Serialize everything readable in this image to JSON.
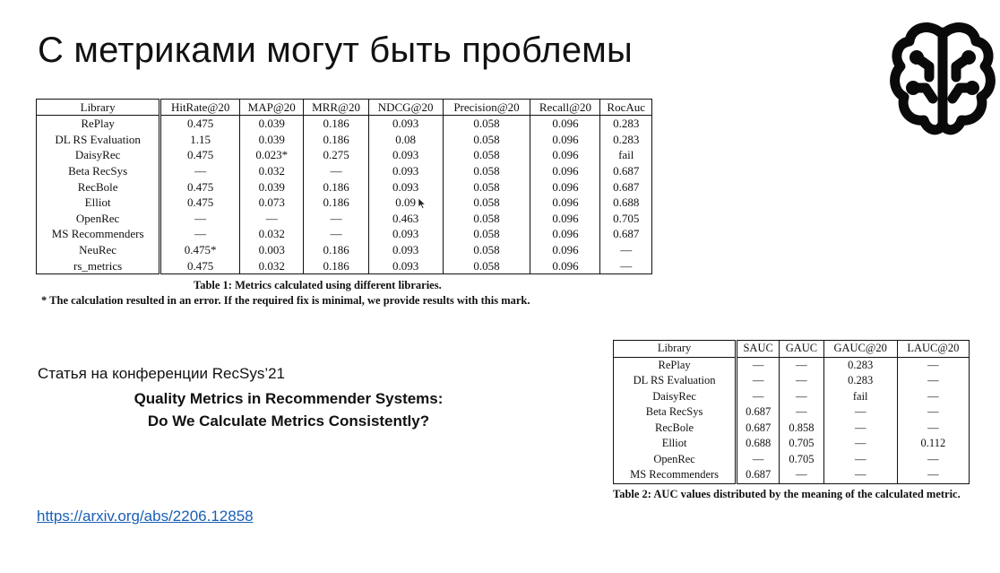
{
  "slide": {
    "title": "С метриками могут быть проблемы",
    "conference_line": "Статья на конференции RecSys’21",
    "paper_title_line1": "Quality Metrics in Recommender Systems:",
    "paper_title_line2": "Do We Calculate Metrics Consistently?",
    "link_text": "https://arxiv.org/abs/2206.12858",
    "logo_icon": "brain-circuit-icon"
  },
  "table1": {
    "headers": [
      "Library",
      "HitRate@20",
      "MAP@20",
      "MRR@20",
      "NDCG@20",
      "Precision@20",
      "Recall@20",
      "RocAuc"
    ],
    "rows": [
      [
        "RePlay",
        "0.475",
        "0.039",
        "0.186",
        "0.093",
        "0.058",
        "0.096",
        "0.283"
      ],
      [
        "DL RS Evaluation",
        "1.15",
        "0.039",
        "0.186",
        "0.08",
        "0.058",
        "0.096",
        "0.283"
      ],
      [
        "DaisyRec",
        "0.475",
        "0.023*",
        "0.275",
        "0.093",
        "0.058",
        "0.096",
        "fail"
      ],
      [
        "Beta RecSys",
        "—",
        "0.032",
        "—",
        "0.093",
        "0.058",
        "0.096",
        "0.687"
      ],
      [
        "RecBole",
        "0.475",
        "0.039",
        "0.186",
        "0.093",
        "0.058",
        "0.096",
        "0.687"
      ],
      [
        "Elliot",
        "0.475",
        "0.073",
        "0.186",
        "0.09",
        "0.058",
        "0.096",
        "0.688"
      ],
      [
        "OpenRec",
        "—",
        "—",
        "—",
        "0.463",
        "0.058",
        "0.096",
        "0.705"
      ],
      [
        "MS Recommenders",
        "—",
        "0.032",
        "—",
        "0.093",
        "0.058",
        "0.096",
        "0.687"
      ],
      [
        "NeuRec",
        "0.475*",
        "0.003",
        "0.186",
        "0.093",
        "0.058",
        "0.096",
        "—"
      ],
      [
        "rs_metrics",
        "0.475",
        "0.032",
        "0.186",
        "0.093",
        "0.058",
        "0.096",
        "—"
      ]
    ],
    "caption": "Table 1: Metrics calculated using different libraries.",
    "footnote": "* The calculation resulted in an error. If the required fix is minimal, we provide results with this mark."
  },
  "table2": {
    "headers": [
      "Library",
      "SAUC",
      "GAUC",
      "GAUC@20",
      "LAUC@20"
    ],
    "rows": [
      [
        "RePlay",
        "—",
        "—",
        "0.283",
        "—"
      ],
      [
        "DL RS Evaluation",
        "—",
        "—",
        "0.283",
        "—"
      ],
      [
        "DaisyRec",
        "—",
        "—",
        "fail",
        "—"
      ],
      [
        "Beta RecSys",
        "0.687",
        "—",
        "—",
        "—"
      ],
      [
        "RecBole",
        "0.687",
        "0.858",
        "—",
        "—"
      ],
      [
        "Elliot",
        "0.688",
        "0.705",
        "—",
        "0.112"
      ],
      [
        "OpenRec",
        "—",
        "0.705",
        "—",
        "—"
      ],
      [
        "MS Recommenders",
        "0.687",
        "—",
        "—",
        "—"
      ]
    ],
    "caption": "Table 2: AUC values distributed by the meaning of the calculated metric."
  }
}
